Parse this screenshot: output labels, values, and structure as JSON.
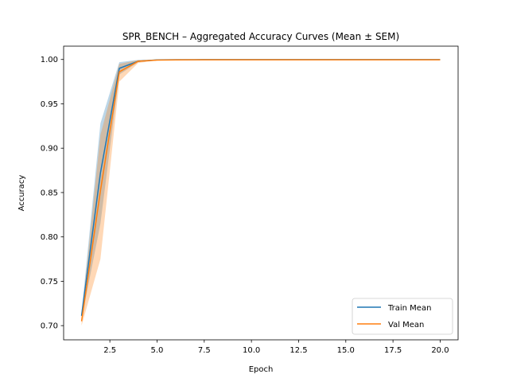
{
  "chart_data": {
    "type": "line",
    "title": "SPR_BENCH – Aggregated Accuracy Curves (Mean ± SEM)",
    "xlabel": "Epoch",
    "ylabel": "Accuracy",
    "xlim": [
      0.05,
      20.95
    ],
    "ylim": [
      0.684,
      1.015
    ],
    "xticks": [
      2.5,
      5.0,
      7.5,
      10.0,
      12.5,
      15.0,
      17.5,
      20.0
    ],
    "xtick_labels": [
      "2.5",
      "5.0",
      "7.5",
      "10.0",
      "12.5",
      "15.0",
      "17.5",
      "20.0"
    ],
    "yticks": [
      0.7,
      0.75,
      0.8,
      0.85,
      0.9,
      0.95,
      1.0
    ],
    "ytick_labels": [
      "0.70",
      "0.75",
      "0.80",
      "0.85",
      "0.90",
      "0.95",
      "1.00"
    ],
    "grid": false,
    "legend_position": "lower-right",
    "x": [
      1,
      2,
      3,
      4,
      5,
      6,
      7,
      8,
      9,
      10,
      11,
      12,
      13,
      14,
      15,
      16,
      17,
      18,
      19,
      20
    ],
    "series": [
      {
        "name": "Train Mean",
        "color": "#1f77b4",
        "values": [
          0.711,
          0.872,
          0.99,
          0.998,
          0.9995,
          0.9997,
          0.9998,
          0.9999,
          0.9999,
          0.9999,
          0.9999,
          0.9999,
          0.9999,
          0.9999,
          0.9999,
          0.9999,
          0.9999,
          0.9999,
          0.9999,
          0.9999
        ],
        "lower": [
          0.707,
          0.815,
          0.983,
          0.997,
          0.9992,
          0.9995,
          0.9996,
          0.9997,
          0.9997,
          0.9997,
          0.9997,
          0.9997,
          0.9997,
          0.9997,
          0.9997,
          0.9997,
          0.9997,
          0.9997,
          0.9997,
          0.9997
        ],
        "upper": [
          0.715,
          0.928,
          0.997,
          0.9995,
          0.9998,
          0.9999,
          1.0,
          1.0,
          1.0,
          1.0,
          1.0,
          1.0,
          1.0,
          1.0,
          1.0,
          1.0,
          1.0,
          1.0,
          1.0,
          1.0
        ]
      },
      {
        "name": "Val Mean",
        "color": "#ff7f0e",
        "values": [
          0.705,
          0.852,
          0.986,
          0.998,
          0.9993,
          0.9995,
          0.9996,
          0.9996,
          0.9996,
          0.9996,
          0.9996,
          0.9996,
          0.9996,
          0.9996,
          0.9996,
          0.9996,
          0.9996,
          0.9996,
          0.9996,
          0.9996
        ],
        "lower": [
          0.7,
          0.775,
          0.975,
          0.996,
          0.999,
          0.9992,
          0.9993,
          0.9993,
          0.9993,
          0.9993,
          0.9993,
          0.9993,
          0.9993,
          0.9993,
          0.9993,
          0.9993,
          0.9993,
          0.9993,
          0.9993,
          0.9993
        ],
        "upper": [
          0.71,
          0.915,
          0.995,
          0.9993,
          0.9997,
          0.9998,
          0.9999,
          0.9999,
          0.9999,
          0.9999,
          0.9999,
          0.9999,
          0.9999,
          0.9999,
          0.9999,
          0.9999,
          0.9999,
          0.9999,
          0.9999,
          0.9999
        ]
      }
    ]
  }
}
